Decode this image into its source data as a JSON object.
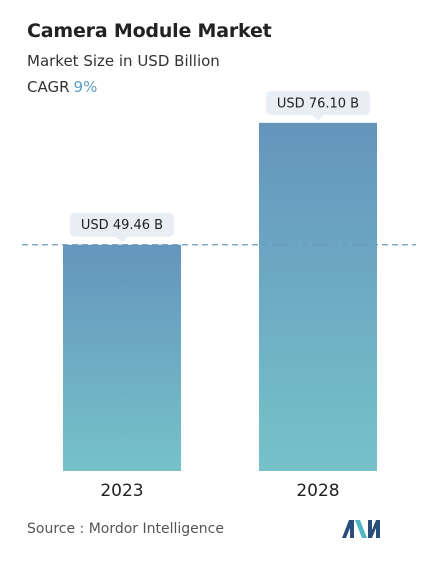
{
  "header": {
    "title": "Camera Module Market",
    "subtitle": "Market Size in USD Billion",
    "cagr_label": "CAGR",
    "cagr_value": "9%"
  },
  "chart_data": {
    "type": "bar",
    "categories": [
      "2023",
      "2028"
    ],
    "values": [
      49.46,
      76.1
    ],
    "value_labels": [
      "USD 49.46 B",
      "USD 76.10 B"
    ],
    "title": "Camera Module Market",
    "subtitle": "Market Size in USD Billion",
    "xlabel": "",
    "ylabel": "",
    "ylim": [
      0,
      80
    ],
    "grid": false,
    "reference_line": "2023 value (dashed)",
    "colors": {
      "bar_top": "#6595bd",
      "bar_bottom": "#76c2c9",
      "label_bg": "#e8eef3",
      "dash": "#6b9ab6"
    }
  },
  "footer": {
    "source": "Source :  Mordor Intelligence",
    "logo_icon": "mordor-intelligence-logo-icon",
    "logo_colors": [
      "#2a4e7a",
      "#4fb8c4"
    ]
  }
}
